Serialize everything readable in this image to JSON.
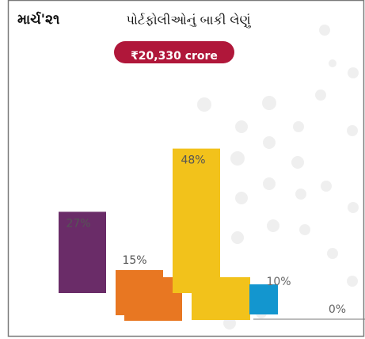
{
  "chart_data": {
    "type": "bar",
    "title": "પોર્ટફોલીઓનું બાકી લેણું",
    "subtitle": "માર્ચ'૨૧",
    "annotation": "₹20,330 crore",
    "categories": [
      null,
      null,
      null,
      null,
      null
    ],
    "values": [
      27,
      15,
      48,
      10,
      0
    ],
    "value_labels": [
      "27%",
      "15%",
      "48%",
      "10%",
      "0%"
    ],
    "colors": [
      "#6a2c68",
      "#e87722",
      "#f2c21b",
      "#1396cf",
      "#9a9a9a"
    ]
  }
}
